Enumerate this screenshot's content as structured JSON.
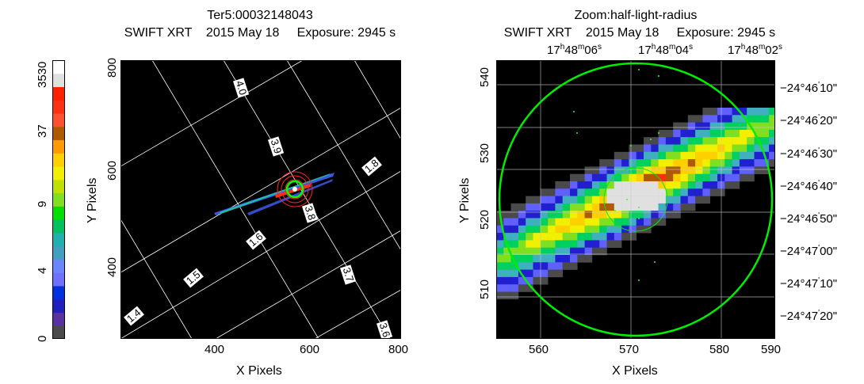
{
  "left_panel": {
    "title_line1": "Ter5:00032148043",
    "title_line2": "SWIFT XRT    2015 May 18     Exposure: 2945 s",
    "xlabel": "X Pixels",
    "ylabel": "Y Pixels",
    "xticks": [
      "400",
      "600",
      "800"
    ],
    "yticks": [
      "800",
      "600",
      "400"
    ],
    "grid_labels": [
      "4.0",
      "3.9",
      "3.8",
      "3.7",
      "3.6",
      "1.8",
      "1.6",
      "1.5",
      "1.4"
    ]
  },
  "right_panel": {
    "title_line1": "Zoom:half-light-radius",
    "title_line2": "SWIFT XRT    2015 May 18     Exposure: 2945 s",
    "xlabel": "X Pixels",
    "ylabel": "Y Pixels",
    "xticks": [
      "560",
      "570",
      "580",
      "590"
    ],
    "yticks": [
      "540",
      "530",
      "520",
      "510"
    ],
    "ra_ticks": [
      {
        "h": "17",
        "m": "48",
        "s": "06"
      },
      {
        "h": "17",
        "m": "48",
        "s": "04"
      },
      {
        "h": "17",
        "m": "48",
        "s": "02"
      }
    ],
    "dec_ticks": [
      {
        "d": "−24°",
        "m": "46",
        "s": "10\""
      },
      {
        "d": "−24°",
        "m": "46",
        "s": "20\""
      },
      {
        "d": "−24°",
        "m": "46",
        "s": "30\""
      },
      {
        "d": "−24°",
        "m": "46",
        "s": "40\""
      },
      {
        "d": "−24°",
        "m": "46",
        "s": "50\""
      },
      {
        "d": "−24°",
        "m": "47",
        "s": "00\""
      },
      {
        "d": "−24°",
        "m": "47",
        "s": "10\""
      },
      {
        "d": "−24°",
        "m": "47",
        "s": "20\""
      }
    ]
  },
  "colorbar": {
    "labels": [
      "0",
      "4",
      "9",
      "37",
      "3530"
    ],
    "colors": [
      "#4a4a4a",
      "#5a32a0",
      "#2020c0",
      "#0030e0",
      "#7070ff",
      "#6a86ff",
      "#40a0c0",
      "#20b0b0",
      "#00c060",
      "#00e000",
      "#80e020",
      "#c0e000",
      "#f0f000",
      "#ffd000",
      "#ff9a00",
      "#b05a00",
      "#ff5030",
      "#ff3010",
      "#ff2000",
      "#e0e0e0",
      "#ffffff"
    ]
  }
}
